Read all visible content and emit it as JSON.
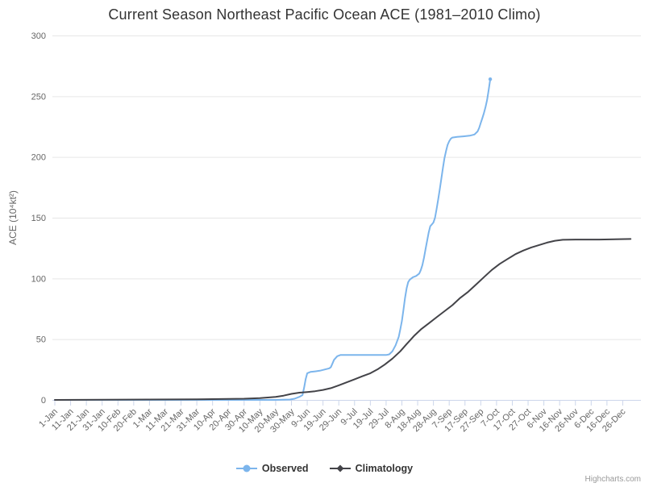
{
  "header": {
    "title": "Current Season Northeast Pacific Ocean ACE (1981–2010 Climo)"
  },
  "credits": {
    "label": "Highcharts.com"
  },
  "chart_data": {
    "type": "line",
    "title": "Current Season Northeast Pacific Ocean ACE (1981–2010 Climo)",
    "xlabel": "",
    "ylabel": "ACE (10⁴kt²)",
    "ylim": [
      0,
      300
    ],
    "ytick_interval": 50,
    "ytick_labels": [
      "0",
      "50",
      "100",
      "150",
      "200",
      "250",
      "300"
    ],
    "grid": true,
    "legend_position": "bottom",
    "x_unit": "day of year (leap-year calendar), ticks every 10 days",
    "xtick_days": [
      1,
      11,
      21,
      31,
      41,
      51,
      61,
      71,
      81,
      91,
      101,
      111,
      121,
      131,
      141,
      151,
      161,
      171,
      181,
      191,
      201,
      211,
      221,
      231,
      241,
      251,
      261,
      271,
      281,
      291,
      301,
      311,
      321,
      331,
      341,
      351,
      361
    ],
    "xtick_labels": [
      "1-Jan",
      "11-Jan",
      "21-Jan",
      "31-Jan",
      "10-Feb",
      "20-Feb",
      "1-Mar",
      "11-Mar",
      "21-Mar",
      "31-Mar",
      "10-Apr",
      "20-Apr",
      "30-Apr",
      "10-May",
      "20-May",
      "30-May",
      "9-Jun",
      "19-Jun",
      "29-Jun",
      "9-Jul",
      "19-Jul",
      "29-Jul",
      "8-Aug",
      "18-Aug",
      "28-Aug",
      "7-Sep",
      "17-Sep",
      "27-Sep",
      "7-Oct",
      "17-Oct",
      "27-Oct",
      "6-Nov",
      "16-Nov",
      "26-Nov",
      "6-Dec",
      "16-Dec",
      "26-Dec"
    ],
    "colors": {
      "observed": "#7cb5ec",
      "climatology": "#434348",
      "gridline": "#e6e6e6",
      "axis_line": "#ccd6eb",
      "tick": "#ccd6eb",
      "axis_label": "#666666",
      "title": "#333333"
    },
    "series": [
      {
        "name": "Observed",
        "color": "#7cb5ec",
        "marker": "circle",
        "points": [
          [
            1,
            0
          ],
          [
            31,
            0
          ],
          [
            61,
            0
          ],
          [
            91,
            0
          ],
          [
            121,
            0
          ],
          [
            140,
            0
          ],
          [
            150,
            0.3
          ],
          [
            153,
            1
          ],
          [
            156,
            2.5
          ],
          [
            158,
            4
          ],
          [
            159,
            10
          ],
          [
            160,
            17
          ],
          [
            161,
            22
          ],
          [
            163,
            23
          ],
          [
            166,
            23.5
          ],
          [
            169,
            24
          ],
          [
            172,
            25
          ],
          [
            175,
            26
          ],
          [
            176,
            27
          ],
          [
            177,
            30
          ],
          [
            178,
            33
          ],
          [
            180,
            36
          ],
          [
            182,
            37
          ],
          [
            196,
            37
          ],
          [
            211,
            37
          ],
          [
            213,
            37.5
          ],
          [
            215,
            40
          ],
          [
            217,
            45
          ],
          [
            219,
            52
          ],
          [
            220,
            58
          ],
          [
            221,
            65
          ],
          [
            222,
            74
          ],
          [
            223,
            84
          ],
          [
            224,
            92
          ],
          [
            225,
            97
          ],
          [
            226,
            99
          ],
          [
            228,
            101
          ],
          [
            230,
            102
          ],
          [
            232,
            104
          ],
          [
            233,
            107
          ],
          [
            234,
            111
          ],
          [
            235,
            117
          ],
          [
            236,
            124
          ],
          [
            237,
            131
          ],
          [
            238,
            138
          ],
          [
            239,
            143
          ],
          [
            240,
            144.5
          ],
          [
            241,
            146
          ],
          [
            242,
            150
          ],
          [
            243,
            157
          ],
          [
            244,
            165
          ],
          [
            245,
            173
          ],
          [
            246,
            182
          ],
          [
            247,
            191
          ],
          [
            248,
            199
          ],
          [
            249,
            205
          ],
          [
            250,
            210
          ],
          [
            251,
            213
          ],
          [
            252,
            215
          ],
          [
            253,
            216
          ],
          [
            256,
            216.5
          ],
          [
            260,
            217
          ],
          [
            264,
            217.5
          ],
          [
            267,
            218.5
          ],
          [
            269,
            221
          ],
          [
            270,
            224
          ],
          [
            271,
            228
          ],
          [
            272,
            232
          ],
          [
            273,
            236
          ],
          [
            274,
            241
          ],
          [
            275,
            247
          ],
          [
            276,
            255
          ],
          [
            277,
            264
          ]
        ]
      },
      {
        "name": "Climatology",
        "color": "#434348",
        "marker": "diamond",
        "points": [
          [
            1,
            0
          ],
          [
            31,
            0.2
          ],
          [
            60,
            0.3
          ],
          [
            91,
            0.5
          ],
          [
            121,
            1
          ],
          [
            131,
            1.5
          ],
          [
            141,
            2.5
          ],
          [
            146,
            3.5
          ],
          [
            151,
            5
          ],
          [
            156,
            6
          ],
          [
            161,
            6.5
          ],
          [
            166,
            7.2
          ],
          [
            171,
            8.2
          ],
          [
            176,
            9.7
          ],
          [
            181,
            12
          ],
          [
            186,
            14.5
          ],
          [
            191,
            17
          ],
          [
            196,
            19.5
          ],
          [
            201,
            22
          ],
          [
            206,
            25.5
          ],
          [
            210,
            29
          ],
          [
            215,
            34
          ],
          [
            220,
            40
          ],
          [
            224,
            46
          ],
          [
            229,
            53
          ],
          [
            233,
            58
          ],
          [
            238,
            63
          ],
          [
            243,
            68
          ],
          [
            248,
            73
          ],
          [
            253,
            78
          ],
          [
            258,
            84
          ],
          [
            263,
            89
          ],
          [
            268,
            95
          ],
          [
            273,
            101
          ],
          [
            278,
            107
          ],
          [
            283,
            112
          ],
          [
            288,
            116
          ],
          [
            293,
            120
          ],
          [
            298,
            123
          ],
          [
            303,
            125.5
          ],
          [
            308,
            127.5
          ],
          [
            313,
            129.5
          ],
          [
            318,
            131
          ],
          [
            323,
            131.8
          ],
          [
            331,
            132
          ],
          [
            346,
            132
          ],
          [
            366,
            132.5
          ]
        ]
      }
    ]
  }
}
